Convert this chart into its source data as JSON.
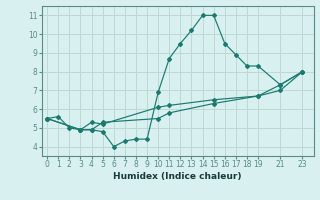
{
  "xlabel": "Humidex (Indice chaleur)",
  "bg_color": "#d8f0f0",
  "grid_color": "#c0d8d4",
  "line_color": "#1a7a6e",
  "spine_color": "#5a8a84",
  "xlim": [
    -0.5,
    24.0
  ],
  "ylim": [
    3.5,
    11.5
  ],
  "xticks": [
    0,
    1,
    2,
    3,
    4,
    5,
    6,
    7,
    8,
    9,
    10,
    11,
    12,
    13,
    14,
    15,
    16,
    17,
    18,
    19,
    21,
    23
  ],
  "yticks": [
    4,
    5,
    6,
    7,
    8,
    9,
    10,
    11
  ],
  "series": [
    {
      "x": [
        0,
        1,
        2,
        3,
        4,
        5,
        6,
        7,
        8,
        9,
        10,
        11,
        12,
        13,
        14,
        15,
        16,
        17,
        18,
        19,
        21,
        23
      ],
      "y": [
        5.5,
        5.6,
        5.0,
        4.9,
        4.9,
        4.8,
        4.0,
        4.3,
        4.4,
        4.4,
        6.9,
        8.7,
        9.5,
        10.2,
        11.0,
        11.0,
        9.5,
        8.9,
        8.3,
        8.3,
        7.3,
        8.0
      ]
    },
    {
      "x": [
        0,
        3,
        4,
        5,
        10,
        11,
        15,
        19,
        21,
        23
      ],
      "y": [
        5.5,
        4.9,
        5.3,
        5.2,
        6.1,
        6.2,
        6.5,
        6.7,
        7.3,
        8.0
      ]
    },
    {
      "x": [
        0,
        3,
        4,
        5,
        10,
        11,
        15,
        19,
        21,
        23
      ],
      "y": [
        5.5,
        4.9,
        4.9,
        5.3,
        5.5,
        5.8,
        6.3,
        6.7,
        7.0,
        8.0
      ]
    }
  ]
}
